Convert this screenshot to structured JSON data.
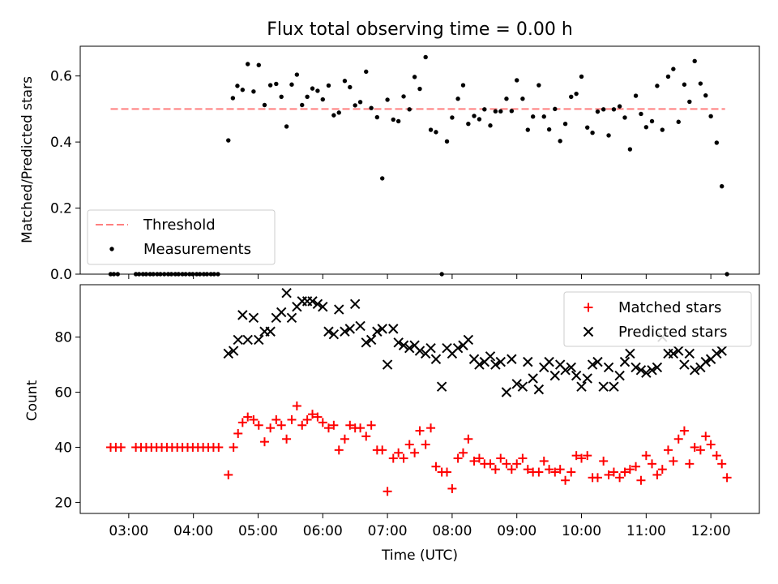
{
  "chart_data": {
    "title": "Flux total observing time = 0.00 h",
    "xlabel": "Time (UTC)",
    "xlim": [
      2.25,
      12.75
    ],
    "xticks": [
      3,
      4,
      5,
      6,
      7,
      8,
      9,
      10,
      11,
      12
    ],
    "xtick_labels": [
      "03:00",
      "04:00",
      "05:00",
      "06:00",
      "07:00",
      "08:00",
      "09:00",
      "10:00",
      "11:00",
      "12:00"
    ],
    "panels": [
      {
        "type": "scatter",
        "ylabel": "Matched/Predicted stars",
        "ylim": [
          0,
          0.69
        ],
        "yticks": [
          0.0,
          0.2,
          0.4,
          0.6
        ],
        "ytick_labels": [
          "0.0",
          "0.2",
          "0.4",
          "0.6"
        ],
        "legend_position": "lower-left",
        "threshold": {
          "name": "Threshold",
          "value": 0.5,
          "x_range": [
            2.72,
            12.22
          ],
          "color": "#ff7f7f"
        },
        "series": [
          {
            "name": "Measurements",
            "color": "#000000",
            "x": [
              2.72,
              2.77,
              2.83,
              3.11,
              3.16,
              3.22,
              3.27,
              3.33,
              3.38,
              3.44,
              3.49,
              3.55,
              3.61,
              3.66,
              3.72,
              3.77,
              3.83,
              3.88,
              3.94,
              3.99,
              4.05,
              4.1,
              4.16,
              4.21,
              4.27,
              4.32,
              4.38,
              4.54,
              4.61,
              4.68,
              4.76,
              4.84,
              4.93,
              5.01,
              5.1,
              5.19,
              5.28,
              5.36,
              5.44,
              5.52,
              5.6,
              5.68,
              5.76,
              5.84,
              5.92,
              6.0,
              6.09,
              6.17,
              6.25,
              6.34,
              6.42,
              6.5,
              6.58,
              6.67,
              6.75,
              6.84,
              6.92,
              7.0,
              7.09,
              7.17,
              7.25,
              7.34,
              7.42,
              7.5,
              7.59,
              7.67,
              7.75,
              7.84,
              7.92,
              8.0,
              8.09,
              8.17,
              8.25,
              8.34,
              8.42,
              8.5,
              8.59,
              8.67,
              8.75,
              8.84,
              8.92,
              9.0,
              9.09,
              9.17,
              9.25,
              9.34,
              9.42,
              9.5,
              9.59,
              9.67,
              9.75,
              9.84,
              9.92,
              10.0,
              10.09,
              10.17,
              10.25,
              10.34,
              10.42,
              10.5,
              10.59,
              10.67,
              10.75,
              10.84,
              10.92,
              11.0,
              11.09,
              11.17,
              11.25,
              11.34,
              11.42,
              11.5,
              11.59,
              11.67,
              11.75,
              11.84,
              11.92,
              12.0,
              12.09,
              12.17,
              12.25
            ],
            "y": [
              0.0,
              0.0,
              0.0,
              0.0,
              0.0,
              0.0,
              0.0,
              0.0,
              0.0,
              0.0,
              0.0,
              0.0,
              0.0,
              0.0,
              0.0,
              0.0,
              0.0,
              0.0,
              0.0,
              0.0,
              0.0,
              0.0,
              0.0,
              0.0,
              0.0,
              0.0,
              0.0,
              0.405,
              0.533,
              0.57,
              0.558,
              0.636,
              0.553,
              0.633,
              0.512,
              0.572,
              0.576,
              0.537,
              0.447,
              0.574,
              0.604,
              0.512,
              0.537,
              0.562,
              0.555,
              0.529,
              0.571,
              0.481,
              0.489,
              0.585,
              0.566,
              0.511,
              0.521,
              0.613,
              0.503,
              0.475,
              0.29,
              0.528,
              0.468,
              0.463,
              0.538,
              0.499,
              0.597,
              0.561,
              0.657,
              0.437,
              0.43,
              0.0,
              0.402,
              0.474,
              0.531,
              0.572,
              0.455,
              0.479,
              0.469,
              0.499,
              0.45,
              0.493,
              0.493,
              0.531,
              0.494,
              0.587,
              0.531,
              0.437,
              0.477,
              0.572,
              0.477,
              0.438,
              0.5,
              0.403,
              0.455,
              0.537,
              0.546,
              0.598,
              0.444,
              0.428,
              0.492,
              0.499,
              0.42,
              0.499,
              0.508,
              0.474,
              0.378,
              0.54,
              0.485,
              0.445,
              0.463,
              0.57,
              0.437,
              0.598,
              0.621,
              0.461,
              0.574,
              0.522,
              0.645,
              0.577,
              0.541,
              0.478,
              0.398,
              0.266,
              0.0
            ]
          }
        ]
      },
      {
        "type": "scatter",
        "ylabel": "Count",
        "ylim": [
          16,
          99
        ],
        "yticks": [
          20,
          40,
          60,
          80
        ],
        "ytick_labels": [
          "20",
          "40",
          "60",
          "80"
        ],
        "legend_position": "upper-right",
        "series": [
          {
            "name": "Matched stars",
            "color": "#ff0000",
            "marker": "plus",
            "x": [
              2.72,
              2.8,
              2.88,
              3.11,
              3.19,
              3.27,
              3.35,
              3.43,
              3.51,
              3.59,
              3.67,
              3.75,
              3.83,
              3.91,
              3.99,
              4.07,
              4.15,
              4.23,
              4.31,
              4.39,
              4.54,
              4.62,
              4.69,
              4.76,
              4.84,
              4.93,
              5.01,
              5.1,
              5.19,
              5.28,
              5.36,
              5.44,
              5.52,
              5.6,
              5.68,
              5.76,
              5.84,
              5.92,
              6.0,
              6.09,
              6.17,
              6.25,
              6.34,
              6.42,
              6.5,
              6.58,
              6.67,
              6.75,
              6.84,
              6.92,
              7.0,
              7.09,
              7.17,
              7.25,
              7.34,
              7.42,
              7.5,
              7.59,
              7.67,
              7.75,
              7.84,
              7.92,
              8.0,
              8.09,
              8.17,
              8.25,
              8.34,
              8.42,
              8.5,
              8.59,
              8.67,
              8.75,
              8.84,
              8.92,
              9.0,
              9.09,
              9.17,
              9.25,
              9.34,
              9.42,
              9.5,
              9.59,
              9.67,
              9.75,
              9.84,
              9.92,
              10.0,
              10.09,
              10.17,
              10.25,
              10.34,
              10.42,
              10.5,
              10.59,
              10.67,
              10.75,
              10.84,
              10.92,
              11.0,
              11.09,
              11.17,
              11.25,
              11.34,
              11.42,
              11.5,
              11.59,
              11.67,
              11.75,
              11.84,
              11.92,
              12.0,
              12.09,
              12.17,
              12.25
            ],
            "y": [
              40,
              40,
              40,
              40,
              40,
              40,
              40,
              40,
              40,
              40,
              40,
              40,
              40,
              40,
              40,
              40,
              40,
              40,
              40,
              40,
              30,
              40,
              45,
              49,
              51,
              50,
              48,
              42,
              47,
              50,
              48,
              43,
              50,
              55,
              48,
              50,
              52,
              51,
              49,
              47,
              48,
              39,
              43,
              48,
              47,
              47,
              44,
              48,
              39,
              39,
              24,
              36,
              38,
              36,
              41,
              38,
              46,
              41,
              47,
              33,
              31,
              31,
              25,
              36,
              38,
              43,
              35,
              36,
              34,
              34,
              32,
              36,
              34,
              32,
              34,
              36,
              32,
              31,
              31,
              35,
              32,
              31,
              32,
              28,
              31,
              37,
              36,
              37,
              29,
              29,
              35,
              30,
              31,
              29,
              31,
              32,
              33,
              28,
              37,
              34,
              30,
              32,
              39,
              35,
              43,
              46,
              34,
              40,
              39,
              44,
              41,
              37,
              34,
              29
            ]
          },
          {
            "name": "Predicted stars",
            "color": "#000000",
            "marker": "x",
            "x": [
              4.54,
              4.62,
              4.69,
              4.76,
              4.84,
              4.93,
              5.01,
              5.1,
              5.19,
              5.28,
              5.36,
              5.44,
              5.52,
              5.6,
              5.68,
              5.76,
              5.84,
              5.92,
              6.0,
              6.09,
              6.17,
              6.25,
              6.34,
              6.42,
              6.5,
              6.58,
              6.67,
              6.75,
              6.84,
              6.92,
              7.0,
              7.09,
              7.17,
              7.25,
              7.34,
              7.42,
              7.5,
              7.59,
              7.67,
              7.75,
              7.84,
              7.92,
              8.0,
              8.09,
              8.17,
              8.25,
              8.34,
              8.42,
              8.5,
              8.59,
              8.67,
              8.75,
              8.84,
              8.92,
              9.0,
              9.09,
              9.17,
              9.25,
              9.34,
              9.42,
              9.5,
              9.59,
              9.67,
              9.75,
              9.84,
              9.92,
              10.0,
              10.09,
              10.17,
              10.25,
              10.34,
              10.42,
              10.5,
              10.59,
              10.67,
              10.75,
              10.84,
              10.92,
              11.0,
              11.09,
              11.17,
              11.25,
              11.34,
              11.42,
              11.5,
              11.59,
              11.67,
              11.75,
              11.84,
              11.92,
              12.0,
              12.09,
              12.17
            ],
            "y": [
              74,
              75,
              79,
              88,
              79,
              87,
              79,
              82,
              82,
              87,
              89,
              96,
              87,
              91,
              93,
              93,
              93,
              92,
              91,
              82,
              81,
              90,
              82,
              83,
              92,
              84,
              78,
              79,
              82,
              83,
              70,
              83,
              78,
              77,
              76,
              77,
              75,
              74,
              76,
              72,
              62,
              76,
              74,
              76,
              77,
              79,
              72,
              70,
              71,
              73,
              70,
              71,
              60,
              72,
              63,
              62,
              71,
              65,
              61,
              69,
              71,
              66,
              70,
              68,
              69,
              66,
              62,
              65,
              70,
              71,
              62,
              69,
              62,
              66,
              71,
              74,
              69,
              68,
              67,
              68,
              69,
              80,
              74,
              74,
              75,
              70,
              74,
              68,
              69,
              71,
              72,
              74,
              75
            ]
          }
        ]
      }
    ]
  }
}
